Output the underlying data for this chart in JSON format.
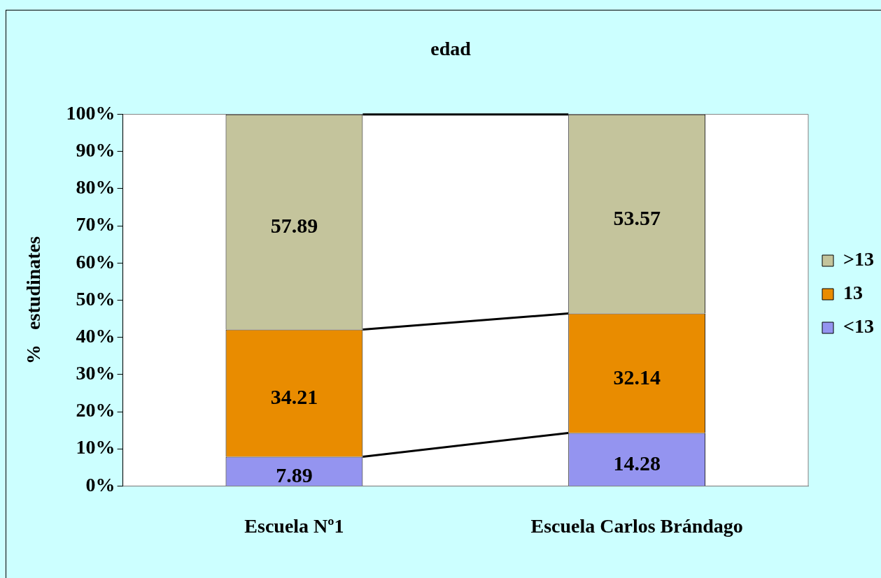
{
  "chart_data": {
    "type": "bar",
    "title": "edad",
    "ylabel": "%   estudinates",
    "categories": [
      "Escuela Nº1",
      "Escuela Carlos Brándago"
    ],
    "stacked": true,
    "data_labels": true,
    "legend": "right",
    "grid": false,
    "ylim": [
      0,
      100
    ],
    "yticks": [
      {
        "value": 0,
        "label": "0%"
      },
      {
        "value": 10,
        "label": "10%"
      },
      {
        "value": 20,
        "label": "20%"
      },
      {
        "value": 30,
        "label": "30%"
      },
      {
        "value": 40,
        "label": "40%"
      },
      {
        "value": 50,
        "label": "50%"
      },
      {
        "value": 60,
        "label": "60%"
      },
      {
        "value": 70,
        "label": "70%"
      },
      {
        "value": 80,
        "label": "80%"
      },
      {
        "value": 90,
        "label": "90%"
      },
      {
        "value": 100,
        "label": "100%"
      }
    ],
    "series": [
      {
        "name": "<13",
        "color": "#9494f0",
        "values": [
          7.89,
          14.28
        ]
      },
      {
        "name": "13",
        "color": "#e98c00",
        "values": [
          34.21,
          32.14
        ]
      },
      {
        "name": ">13",
        "color": "#c4c49c",
        "values": [
          57.89,
          53.57
        ]
      }
    ]
  }
}
